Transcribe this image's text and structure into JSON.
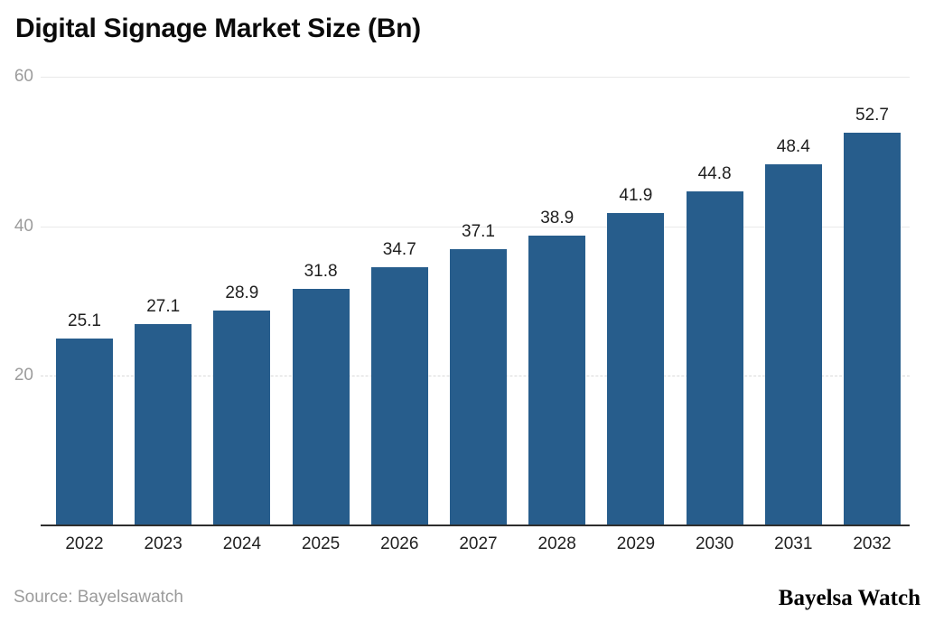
{
  "chart_data": {
    "type": "bar",
    "title": "Digital Signage Market Size (Bn)",
    "categories": [
      "2022",
      "2023",
      "2024",
      "2025",
      "2026",
      "2027",
      "2028",
      "2029",
      "2030",
      "2031",
      "2032"
    ],
    "values": [
      25.1,
      27.1,
      28.9,
      31.8,
      34.7,
      37.1,
      38.9,
      41.9,
      44.8,
      48.4,
      52.7
    ],
    "xlabel": "",
    "ylabel": "",
    "ylim": [
      0,
      60
    ],
    "yticks": [
      {
        "value": 20,
        "label": "20",
        "style": "dashed"
      },
      {
        "value": 40,
        "label": "40",
        "style": "solid"
      },
      {
        "value": 60,
        "label": "60",
        "style": "solid"
      }
    ],
    "grid": true,
    "legend_position": "none",
    "bar_color": "#275d8c"
  },
  "footer": {
    "source": "Source: Bayelsawatch",
    "brand": "Bayelsa Watch"
  },
  "colors": {
    "bar": "#275d8c",
    "axis_line": "#2e2e2e",
    "grid_solid": "#e9e9e9",
    "grid_dashed": "#d9d9d9",
    "tick_text": "#9c9c9c",
    "label_text": "#1f1f1f",
    "title_text": "#0b0b0b",
    "source_text": "#9b9b9b",
    "background": "#ffffff"
  }
}
